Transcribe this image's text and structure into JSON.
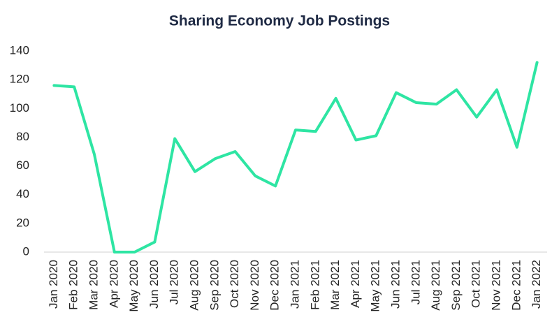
{
  "chart_data": {
    "type": "line",
    "title": "Sharing Economy Job Postings",
    "categories": [
      "Jan 2020",
      "Feb 2020",
      "Mar 2020",
      "Apr 2020",
      "May 2020",
      "Jun 2020",
      "Jul 2020",
      "Aug 2020",
      "Sep 2020",
      "Oct 2020",
      "Nov 2020",
      "Dec 2020",
      "Jan 2021",
      "Feb 2021",
      "Mar 2021",
      "Apr 2021",
      "May 2021",
      "Jun 2021",
      "Jul 2021",
      "Aug 2021",
      "Sep 2021",
      "Oct 2021",
      "Nov 2021",
      "Dec 2021",
      "Jan 2022"
    ],
    "values": [
      116,
      115,
      68,
      0,
      0,
      7,
      79,
      56,
      65,
      70,
      53,
      46,
      85,
      84,
      107,
      78,
      81,
      111,
      104,
      103,
      113,
      94,
      113,
      73,
      132
    ],
    "color": "#2ee5a3",
    "ylim": [
      0,
      140
    ],
    "yticks": [
      0,
      20,
      40,
      60,
      80,
      100,
      120,
      140
    ],
    "grid": false
  }
}
